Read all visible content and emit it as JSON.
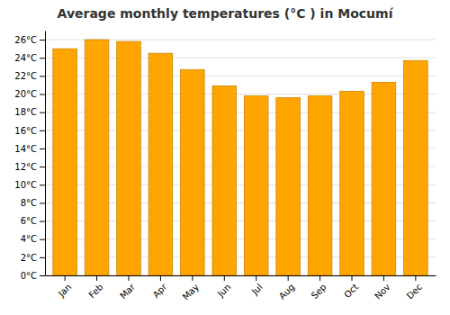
{
  "chart_data": {
    "type": "bar",
    "title": "Average monthly temperatures (°C ) in Mocumí",
    "categories": [
      "Jan",
      "Feb",
      "Mar",
      "Apr",
      "May",
      "Jun",
      "Jul",
      "Aug",
      "Sep",
      "Oct",
      "Nov",
      "Dec"
    ],
    "values": [
      25.0,
      26.0,
      25.8,
      24.5,
      22.7,
      20.9,
      19.8,
      19.6,
      19.8,
      20.3,
      21.3,
      23.7
    ],
    "color": "#FFA500",
    "ylim": [
      0,
      27
    ],
    "yticks": [
      {
        "value": 0,
        "label": "0°C"
      },
      {
        "value": 2,
        "label": "2°C"
      },
      {
        "value": 4,
        "label": "4°C"
      },
      {
        "value": 6,
        "label": "6°C"
      },
      {
        "value": 8,
        "label": "8°C"
      },
      {
        "value": 10,
        "label": "10°C"
      },
      {
        "value": 12,
        "label": "12°C"
      },
      {
        "value": 14,
        "label": "14°C"
      },
      {
        "value": 16,
        "label": "16°C"
      },
      {
        "value": 18,
        "label": "18°C"
      },
      {
        "value": 20,
        "label": "20°C"
      },
      {
        "value": 22,
        "label": "22°C"
      },
      {
        "value": 24,
        "label": "24°C"
      },
      {
        "value": 26,
        "label": "26°C"
      }
    ],
    "grid": true
  }
}
